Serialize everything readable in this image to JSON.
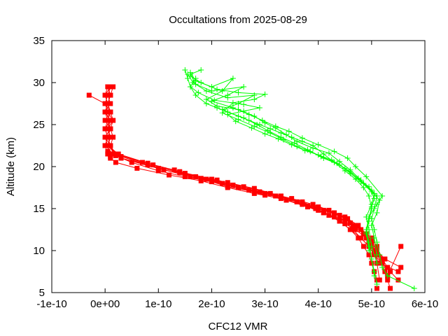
{
  "chart_data": {
    "type": "line",
    "title": "Occultations from 2025-08-29",
    "xlabel": "CFC12 VMR",
    "ylabel": "Altitude (km)",
    "xlim": [
      -1e-10,
      6e-10
    ],
    "ylim": [
      5,
      35
    ],
    "xticks": [
      -1e-10,
      0,
      1e-10,
      2e-10,
      3e-10,
      4e-10,
      5e-10,
      6e-10
    ],
    "xtick_labels": [
      "-1e-10",
      "0e+00",
      "1e-10",
      "2e-10",
      "3e-10",
      "4e-10",
      "5e-10",
      "6e-10"
    ],
    "yticks": [
      5,
      10,
      15,
      20,
      25,
      30,
      35
    ],
    "ytick_labels": [
      "5",
      "10",
      "15",
      "20",
      "25",
      "30",
      "35"
    ],
    "grid": false,
    "legend": "none",
    "series": [
      {
        "name": "red-1",
        "color": "#ff0000",
        "marker": "square",
        "x": [
          5e-12,
          1e-11,
          5e-12,
          0.0,
          5e-12,
          1e-11,
          5e-12,
          0.0,
          5e-12,
          1e-11,
          5e-12,
          5e-12,
          1e-11,
          2e-11,
          5e-11,
          1e-10,
          1.5e-10,
          2e-10,
          2.5e-10,
          3e-10,
          3.4e-10,
          3.8e-10,
          4.1e-10,
          4.4e-10,
          4.6e-10,
          4.75e-10,
          4.85e-10,
          4.95e-10,
          5e-10,
          5.05e-10,
          5.1e-10,
          5.1e-10
        ],
        "y": [
          29.5,
          28.5,
          27.5,
          26.5,
          25.5,
          24.5,
          23.5,
          22.5,
          21.5,
          21.2,
          21.5,
          21.5,
          21.5,
          21.3,
          20.5,
          19.5,
          18.8,
          18.2,
          17.5,
          16.8,
          16.0,
          15.3,
          14.5,
          13.5,
          12.5,
          11.5,
          10.5,
          9.5,
          8.5,
          7.5,
          6.5,
          5.5
        ]
      },
      {
        "name": "red-2",
        "color": "#ff0000",
        "marker": "square",
        "x": [
          -3e-11,
          0.0,
          1e-11,
          1.5e-11,
          1e-11,
          1.5e-11,
          1e-11,
          1.5e-11,
          1e-11,
          2e-11,
          6e-11,
          1.2e-10,
          1.8e-10,
          2.3e-10,
          2.8e-10,
          3.3e-10,
          3.7e-10,
          4e-10,
          4.3e-10,
          4.5e-10,
          4.7e-10,
          4.9e-10,
          5e-10,
          5.1e-10,
          5.2e-10,
          5.25e-10,
          5.3e-10,
          5.35e-10
        ],
        "y": [
          28.5,
          27.5,
          26.5,
          25.5,
          24.5,
          23.5,
          22.5,
          21.5,
          21.0,
          20.5,
          19.8,
          19.0,
          18.3,
          17.5,
          16.8,
          16.2,
          15.5,
          14.8,
          14.0,
          13.2,
          12.5,
          11.5,
          10.5,
          9.5,
          8.5,
          7.5,
          6.5,
          5.5
        ]
      },
      {
        "name": "red-3",
        "color": "#ff0000",
        "marker": "square",
        "x": [
          1e-11,
          0.0,
          5e-12,
          0.0,
          1e-11,
          0.0,
          5e-12,
          0.0,
          1.5e-11,
          3e-11,
          8e-11,
          1.4e-10,
          1.9e-10,
          2.4e-10,
          2.9e-10,
          3.3e-10,
          3.6e-10,
          3.95e-10,
          4.2e-10,
          4.4e-10,
          4.6e-10,
          4.8e-10,
          4.95e-10,
          5.05e-10,
          5.2e-10,
          5.35e-10,
          5.5e-10
        ],
        "y": [
          29.5,
          28.5,
          27.5,
          26.5,
          25.5,
          24.5,
          23.5,
          22.5,
          21.5,
          21.0,
          20.2,
          19.3,
          18.5,
          17.8,
          17.0,
          16.5,
          15.8,
          15.0,
          14.2,
          13.5,
          12.5,
          11.5,
          10.5,
          9.5,
          8.5,
          7.5,
          6.5
        ]
      },
      {
        "name": "red-4",
        "color": "#ff0000",
        "marker": "square",
        "x": [
          1.5e-11,
          1e-11,
          5e-12,
          1e-11,
          0.0,
          1e-11,
          0.0,
          1e-11,
          5e-12,
          3e-11,
          1e-10,
          1.6e-10,
          2.2e-10,
          2.7e-10,
          3.2e-10,
          3.6e-10,
          4e-10,
          4.3e-10,
          4.55e-10,
          4.75e-10,
          4.9e-10,
          5e-10,
          5.1e-10,
          5.2e-10,
          5.3e-10
        ],
        "y": [
          29.5,
          28.5,
          27.5,
          26.5,
          25.5,
          24.5,
          23.5,
          22.5,
          21.8,
          21.2,
          19.8,
          18.8,
          18.0,
          17.2,
          16.5,
          15.8,
          15.2,
          14.5,
          13.8,
          13.0,
          12.0,
          11.0,
          10.0,
          9.0,
          8.0
        ]
      },
      {
        "name": "red-5",
        "color": "#ff0000",
        "marker": "square",
        "x": [
          5e-12,
          1e-11,
          5e-12,
          1e-11,
          5e-12,
          0.0,
          5e-12,
          1e-11,
          2e-11,
          7e-11,
          1.3e-10,
          1.8e-10,
          2.3e-10,
          2.8e-10,
          3.2e-10,
          3.7e-10,
          4e-10,
          4.3e-10,
          4.5e-10,
          4.65e-10,
          4.8e-10,
          4.95e-10,
          5.05e-10,
          5.15e-10,
          5.5e-10
        ],
        "y": [
          29.5,
          28.5,
          27.5,
          26.5,
          25.5,
          24.5,
          23.5,
          22.5,
          21.5,
          20.5,
          19.6,
          18.6,
          17.6,
          17.0,
          16.5,
          15.8,
          15.0,
          14.5,
          13.5,
          12.5,
          11.5,
          10.5,
          9.5,
          8.5,
          7.5
        ]
      },
      {
        "name": "red-6",
        "color": "#ff0000",
        "marker": "square",
        "x": [
          1e-11,
          5e-12,
          0.0,
          5e-12,
          1.5e-11,
          5e-12,
          1e-11,
          5e-12,
          2.5e-11,
          9e-11,
          1.5e-10,
          2.1e-10,
          2.6e-10,
          3.1e-10,
          3.5e-10,
          3.9e-10,
          4.2e-10,
          4.5e-10,
          4.7e-10,
          4.85e-10,
          5e-10,
          5.1e-10,
          5.25e-10,
          5.55e-10
        ],
        "y": [
          29.5,
          28.5,
          27.5,
          26.5,
          25.5,
          24.5,
          23.5,
          22.5,
          21.5,
          20.2,
          19.2,
          18.4,
          17.6,
          16.8,
          16.2,
          15.5,
          14.8,
          14.0,
          13.0,
          12.0,
          11.0,
          10.0,
          9.0,
          8.0
        ]
      },
      {
        "name": "red-7",
        "color": "#ff0000",
        "marker": "square",
        "x": [
          1e-11,
          5e-12,
          1e-11,
          0.0,
          1e-11,
          5e-12,
          1e-11,
          5e-12,
          3e-11,
          1.1e-10,
          1.7e-10,
          2.3e-10,
          2.8e-10,
          3.3e-10,
          3.7e-10,
          4.1e-10,
          4.4e-10,
          4.6e-10,
          4.8e-10,
          5e-10,
          5.1e-10,
          5.2e-10,
          5.3e-10,
          5.55e-10
        ],
        "y": [
          29.5,
          28.5,
          27.5,
          26.5,
          25.5,
          24.5,
          23.5,
          22.5,
          21.0,
          19.6,
          18.8,
          18.1,
          17.4,
          16.5,
          15.6,
          14.8,
          14.2,
          13.3,
          12.5,
          11.5,
          10.5,
          9.0,
          7.0,
          10.5
        ]
      },
      {
        "name": "red-8",
        "color": "#ff0000",
        "marker": "square",
        "x": [
          5e-12,
          0.0,
          5e-12,
          1e-11,
          5e-12,
          1e-11,
          0.0,
          5e-12,
          2e-11,
          8e-11,
          1.4e-10,
          2e-10,
          2.5e-10,
          3e-10,
          3.4e-10,
          3.8e-10,
          4.1e-10,
          4.4e-10,
          4.65e-10,
          4.85e-10,
          4.95e-10,
          5.05e-10,
          5.1e-10,
          5.15e-10
        ],
        "y": [
          29.5,
          28.5,
          27.5,
          26.5,
          25.5,
          24.5,
          23.5,
          22.5,
          21.5,
          20.4,
          19.4,
          18.5,
          17.5,
          16.6,
          16.0,
          15.2,
          14.5,
          13.8,
          13.0,
          12.0,
          11.0,
          10.0,
          8.5,
          6.5
        ]
      },
      {
        "name": "green-1",
        "color": "#00ff00",
        "marker": "plus",
        "x": [
          1.5e-10,
          1.55e-10,
          1.6e-10,
          1.7e-10,
          1.9e-10,
          2.1e-10,
          2.3e-10,
          2.5e-10,
          2.7e-10,
          2.9e-10,
          3.1e-10,
          3.3e-10,
          3.5e-10,
          3.7e-10,
          3.9e-10,
          4.1e-10,
          4.3e-10,
          4.5e-10,
          4.7e-10,
          4.85e-10,
          4.95e-10,
          5e-10,
          4.95e-10,
          4.9e-10,
          4.95e-10,
          5e-10,
          5.05e-10,
          5.1e-10
        ],
        "y": [
          31.5,
          30.5,
          29.5,
          28.5,
          27.5,
          27.0,
          26.5,
          26.0,
          25.5,
          25.0,
          24.5,
          24.0,
          23.5,
          23.0,
          22.5,
          21.5,
          20.5,
          19.5,
          18.5,
          17.5,
          16.5,
          15.0,
          13.5,
          12.0,
          10.5,
          9.0,
          7.5,
          6.0
        ]
      },
      {
        "name": "green-2",
        "color": "#00ff00",
        "marker": "plus",
        "x": [
          1.6e-10,
          1.7e-10,
          2e-10,
          2.4e-10,
          2.2e-10,
          1.9e-10,
          2.1e-10,
          2.5e-10,
          2.8e-10,
          3e-10,
          3.2e-10,
          3.4e-10,
          3.6e-10,
          3.9e-10,
          4.2e-10,
          4.4e-10,
          4.6e-10,
          4.8e-10,
          5e-10,
          5.1e-10,
          5.05e-10,
          5e-10,
          5.05e-10,
          5.1e-10,
          5.15e-10,
          5.2e-10,
          5.3e-10,
          5.8e-10
        ],
        "y": [
          31.2,
          30.2,
          29.5,
          30.5,
          29.0,
          28.0,
          27.2,
          26.8,
          26.0,
          25.2,
          24.6,
          23.8,
          23.0,
          22.2,
          21.6,
          20.6,
          19.6,
          18.4,
          17.2,
          16.5,
          15.0,
          13.8,
          12.5,
          11.0,
          9.5,
          8.0,
          7.0,
          5.5
        ]
      },
      {
        "name": "green-3",
        "color": "#00ff00",
        "marker": "plus",
        "x": [
          1.8e-10,
          1.6e-10,
          1.7e-10,
          2e-10,
          2.6e-10,
          2.3e-10,
          2e-10,
          2.4e-10,
          2.7e-10,
          2.95e-10,
          3.2e-10,
          3.45e-10,
          3.7e-10,
          4e-10,
          4.3e-10,
          4.55e-10,
          4.7e-10,
          4.9e-10,
          5.2e-10,
          5.1e-10,
          4.95e-10,
          4.9e-10,
          4.95e-10,
          5e-10,
          5.05e-10
        ],
        "y": [
          31.5,
          31.0,
          29.8,
          29.0,
          29.5,
          28.5,
          27.8,
          27.0,
          26.2,
          25.5,
          24.8,
          24.2,
          23.4,
          22.6,
          21.8,
          21.0,
          20.0,
          18.8,
          16.5,
          15.5,
          14.0,
          12.5,
          11.0,
          9.0,
          7.0
        ]
      },
      {
        "name": "green-4",
        "color": "#00ff00",
        "marker": "plus",
        "x": [
          1.55e-10,
          1.65e-10,
          1.9e-10,
          2.3e-10,
          2.8e-10,
          2.5e-10,
          2.2e-10,
          2.3e-10,
          2.6e-10,
          2.85e-10,
          3.05e-10,
          3.3e-10,
          3.55e-10,
          3.8e-10,
          4.05e-10,
          4.35e-10,
          4.6e-10,
          4.85e-10,
          5.05e-10,
          5e-10,
          4.9e-10,
          4.95e-10,
          5e-10,
          5.1e-10
        ],
        "y": [
          31.0,
          30.0,
          29.0,
          28.2,
          28.5,
          27.5,
          26.8,
          26.5,
          25.8,
          25.0,
          24.3,
          23.5,
          22.8,
          22.0,
          21.2,
          20.4,
          19.4,
          18.0,
          16.8,
          15.5,
          14.0,
          12.5,
          10.5,
          8.5
        ]
      },
      {
        "name": "green-5",
        "color": "#00ff00",
        "marker": "plus",
        "x": [
          1.6e-10,
          1.8e-10,
          2.1e-10,
          2.5e-10,
          3e-10,
          2.8e-10,
          2.4e-10,
          2.2e-10,
          2.5e-10,
          2.8e-10,
          3.1e-10,
          3.35e-10,
          3.6e-10,
          3.85e-10,
          4.1e-10,
          4.4e-10,
          4.6e-10,
          4.8e-10,
          5e-10,
          5.15e-10,
          5.1e-10,
          5e-10,
          5.05e-10,
          5.1e-10
        ],
        "y": [
          30.8,
          30.0,
          29.2,
          28.8,
          28.6,
          28.0,
          27.6,
          26.4,
          25.6,
          24.8,
          24.0,
          23.2,
          22.4,
          21.8,
          21.0,
          20.2,
          19.2,
          18.2,
          17.0,
          16.0,
          14.5,
          13.0,
          11.5,
          9.5
        ]
      },
      {
        "name": "green-6",
        "color": "#00ff00",
        "marker": "plus",
        "x": [
          1.7e-10,
          1.6e-10,
          1.75e-10,
          2.05e-10,
          2.6e-10,
          2.9e-10,
          2.6e-10,
          2.3e-10,
          2.45e-10,
          2.75e-10,
          3e-10,
          3.25e-10,
          3.5e-10,
          3.75e-10,
          4e-10,
          4.25e-10,
          4.5e-10,
          4.75e-10,
          4.95e-10,
          5.05e-10,
          5e-10,
          4.95e-10,
          4.9e-10,
          4.95e-10
        ],
        "y": [
          30.5,
          29.5,
          28.8,
          27.9,
          27.4,
          27.0,
          26.6,
          26.2,
          25.4,
          24.6,
          23.9,
          23.3,
          22.6,
          21.9,
          21.4,
          20.8,
          19.8,
          18.6,
          17.6,
          16.2,
          15.2,
          13.8,
          12.2,
          10.0
        ]
      }
    ]
  }
}
